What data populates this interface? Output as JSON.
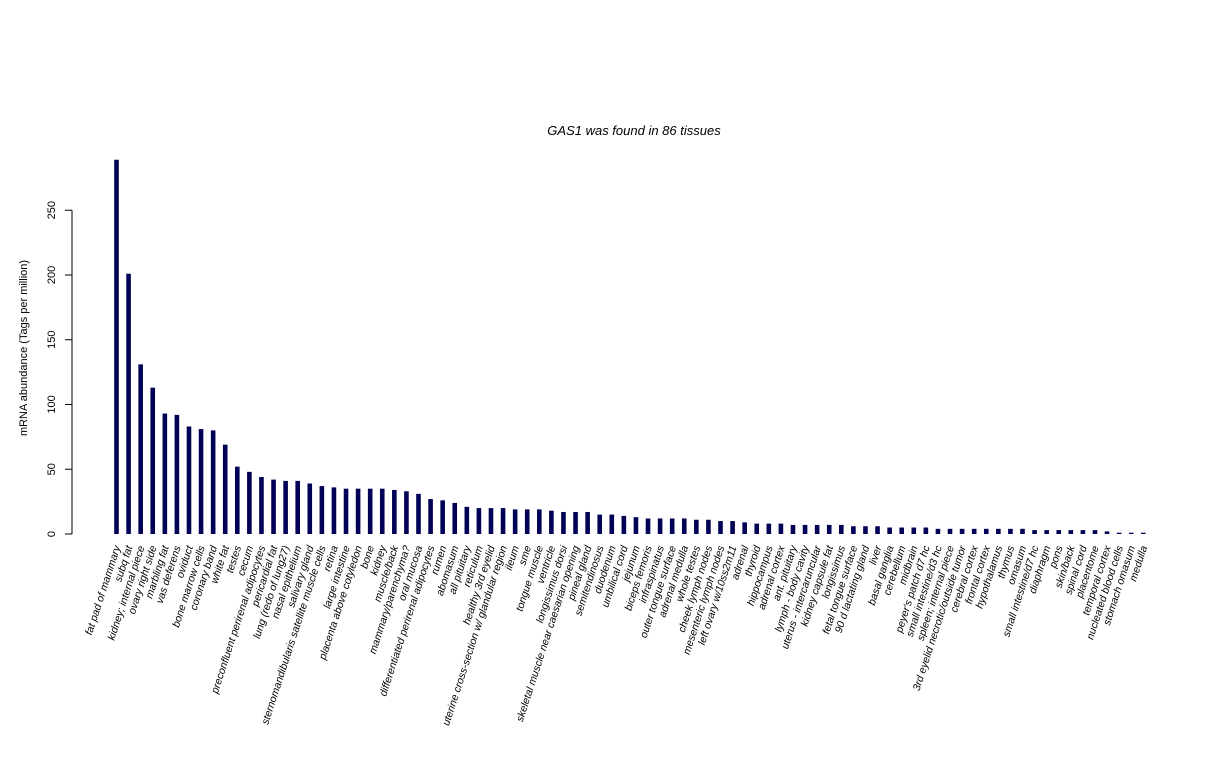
{
  "chart_data": {
    "type": "bar",
    "title": "GAS1  was found in  86  tissues",
    "gene": "GAS1",
    "tissue_count": "86",
    "xlabel": "",
    "ylabel": "mRNA abundance (Tags per million)",
    "ylim": [
      0,
      290
    ],
    "yticks": [
      0,
      50,
      100,
      150,
      200,
      250
    ],
    "bar_color": "#000055",
    "grid": false,
    "categories": [
      "fat pad of mammary",
      "subq fat",
      "kidney; internal piece",
      "ovary right side",
      "marbling fat",
      "vas deferens",
      "oviduct",
      "bone marrow cells",
      "coronary band",
      "white fat",
      "testes",
      "cecum",
      "preconfluent perirenal adipocytes",
      "pericardial fat",
      "lung (redo of lung27)",
      "nasal epithelium",
      "salivary gland",
      "sternomandibularis satellite muscle cells",
      "retina",
      "large intestine",
      "placenta above cotyledon",
      "bone",
      "kidney",
      "muscle/back",
      "mammary/parenchyma?",
      "oral mucosa",
      "differentiated perirenal adipocytes",
      "rumen",
      "abomasum",
      "all pituitary",
      "reticulum",
      "healthy 3rd eyelid",
      "uterine cross-section w/ glandular region",
      "ileum",
      "sme",
      "tongue muscle",
      "ventricle",
      "longissimus dorsi",
      "skeletal muscle near caesarian opening",
      "pineal gland",
      "semitendinosus",
      "duodenum",
      "umbilical cord",
      "jejunum",
      "biceps femoris",
      "infraspinatus",
      "outer tongue surface",
      "adrenal medulla",
      "whole testes",
      "cheek lymph nodes",
      "mesenteric lymph nodes",
      "left ovary w/10ss2m11",
      "adrenal",
      "thyroid",
      "hippocampus",
      "adrenal cortex",
      "ant. pituitary",
      "lymph - body cavity",
      "uterus - intercaruncular",
      "kidney capsule fat",
      "longissimus",
      "fetal tongue surface",
      "90 d lactating gland",
      "liver",
      "basal ganglia",
      "cerebellum",
      "midbrain",
      "peyer's patch d7 hc",
      "small intestine/d3 hc",
      "spleen; internal piece",
      "3rd eyelid necrotic/outside tumor",
      "cerebral cortex",
      "frontal cortex",
      "hypothalamus",
      "thymus",
      "omasum",
      "small intestine/d7 hc",
      "diaphragm",
      "pons",
      "skin/back",
      "spinal cord",
      "placentome",
      "temporal cortex",
      "nucleated blood cells",
      "stomach omasum",
      "medulla"
    ],
    "values": [
      289,
      201,
      131,
      113,
      93,
      92,
      83,
      81,
      80,
      69,
      52,
      48,
      44,
      42,
      41,
      41,
      39,
      37,
      36,
      35,
      35,
      35,
      35,
      34,
      33,
      31,
      27,
      26,
      24,
      21,
      20,
      20,
      20,
      19,
      19,
      19,
      18,
      17,
      17,
      17,
      15,
      15,
      14,
      13,
      12,
      12,
      12,
      12,
      11,
      11,
      10,
      10,
      9,
      8,
      8,
      8,
      7,
      7,
      7,
      7,
      7,
      6,
      6,
      6,
      5,
      5,
      5,
      5,
      4,
      4,
      4,
      4,
      4,
      4,
      4,
      4,
      3,
      3,
      3,
      3,
      3,
      3,
      2,
      1,
      1,
      1
    ]
  }
}
